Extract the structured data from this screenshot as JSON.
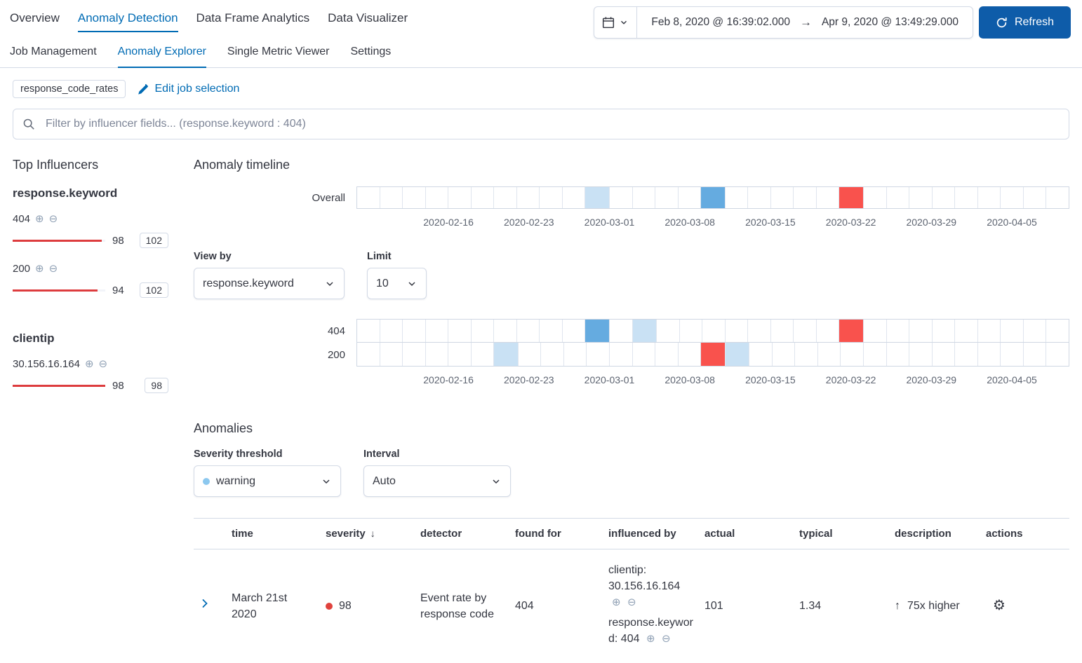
{
  "colors": {
    "link": "#006BB4",
    "refresh_button": "#0E5CA9",
    "bar_red": "#DD3C3E",
    "severity_dot": "#E0423D",
    "warning_dot": "#8CC8EF",
    "cell_low": "#C9E1F4",
    "cell_med": "#65ABE0",
    "cell_crit": "#F9524D"
  },
  "nav": {
    "items": [
      {
        "label": "Overview",
        "active": false
      },
      {
        "label": "Anomaly Detection",
        "active": true
      },
      {
        "label": "Data Frame Analytics",
        "active": false
      },
      {
        "label": "Data Visualizer",
        "active": false
      }
    ]
  },
  "datepicker": {
    "start": "Feb 8, 2020 @ 16:39:02.000",
    "end": "Apr 9, 2020 @ 13:49:29.000"
  },
  "refresh": {
    "label": "Refresh"
  },
  "subnav": {
    "items": [
      {
        "label": "Job Management",
        "active": false
      },
      {
        "label": "Anomaly Explorer",
        "active": true
      },
      {
        "label": "Single Metric Viewer",
        "active": false
      },
      {
        "label": "Settings",
        "active": false
      }
    ]
  },
  "job": {
    "badge": "response_code_rates",
    "edit_label": "Edit job selection"
  },
  "filter": {
    "placeholder": "Filter by influencer fields... (response.keyword : 404)"
  },
  "influencers": {
    "title": "Top Influencers",
    "groups": [
      {
        "field": "response.keyword",
        "items": [
          {
            "name": "404",
            "score": "98",
            "max_badge": "102",
            "bar_pct": 96
          },
          {
            "name": "200",
            "score": "94",
            "max_badge": "102",
            "bar_pct": 92
          }
        ]
      },
      {
        "field": "clientip",
        "items": [
          {
            "name": "30.156.16.164",
            "score": "98",
            "max_badge": "98",
            "bar_pct": 100
          }
        ]
      }
    ]
  },
  "timeline": {
    "title": "Anomaly timeline",
    "overall_label": "Overall",
    "cols": 31,
    "axis": [
      "2020-02-16",
      "2020-02-23",
      "2020-03-01",
      "2020-03-08",
      "2020-03-15",
      "2020-03-22",
      "2020-03-29",
      "2020-04-05"
    ],
    "overall_cells": [
      {
        "i": 10,
        "level": "low"
      },
      {
        "i": 15,
        "level": "med"
      },
      {
        "i": 21,
        "level": "crit"
      }
    ],
    "view_by": {
      "label": "View by",
      "value": "response.keyword"
    },
    "limit": {
      "label": "Limit",
      "value": "10"
    },
    "lanes": [
      {
        "label": "404",
        "cells": [
          {
            "i": 10,
            "level": "med"
          },
          {
            "i": 12,
            "level": "low"
          },
          {
            "i": 21,
            "level": "crit"
          }
        ]
      },
      {
        "label": "200",
        "cells": [
          {
            "i": 6,
            "level": "low"
          },
          {
            "i": 15,
            "level": "crit"
          },
          {
            "i": 16,
            "level": "low"
          }
        ]
      }
    ]
  },
  "anomalies": {
    "title": "Anomalies",
    "severity_threshold": {
      "label": "Severity threshold",
      "value": "warning"
    },
    "interval": {
      "label": "Interval",
      "value": "Auto"
    },
    "table": {
      "headers": [
        "time",
        "severity",
        "detector",
        "found for",
        "influenced by",
        "actual",
        "typical",
        "description",
        "actions"
      ],
      "sorted_column": "severity",
      "row": {
        "time": "March 21st 2020",
        "severity": "98",
        "detector": "Event rate by response code",
        "found_for": "404",
        "influencers": [
          "clientip: 30.156.16.164",
          "response.keyword: 404"
        ],
        "actual": "101",
        "typical": "1.34",
        "description": "75x higher"
      }
    }
  }
}
